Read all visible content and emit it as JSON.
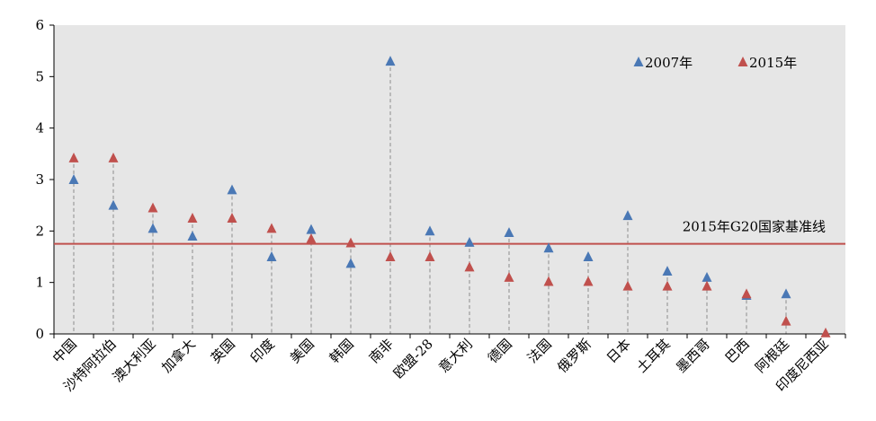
{
  "chart_data": {
    "type": "scatter",
    "title": "",
    "xlabel": "",
    "ylabel": "",
    "ylim": [
      0,
      6
    ],
    "yticks": [
      0,
      1,
      2,
      3,
      4,
      5,
      6
    ],
    "grid": false,
    "legend_position": "top-right",
    "categories": [
      "中国",
      "沙特阿拉伯",
      "澳大利亚",
      "加拿大",
      "英国",
      "印度",
      "美国",
      "韩国",
      "南非",
      "欧盟-28",
      "意大利",
      "德国",
      "法国",
      "俄罗斯",
      "日本",
      "土耳其",
      "墨西哥",
      "巴西",
      "阿根廷",
      "印度尼西亚"
    ],
    "series": [
      {
        "name": "2007年",
        "color": "#4a78b5",
        "marker": "triangle",
        "values": [
          3.0,
          2.5,
          2.05,
          1.9,
          2.8,
          1.5,
          2.03,
          1.37,
          5.3,
          2.0,
          1.78,
          1.97,
          1.67,
          1.5,
          2.3,
          1.22,
          1.1,
          0.75,
          0.78,
          null
        ]
      },
      {
        "name": "2015年",
        "color": "#c0504d",
        "marker": "triangle",
        "values": [
          3.42,
          3.42,
          2.45,
          2.25,
          2.25,
          2.05,
          1.85,
          1.77,
          1.5,
          1.5,
          1.3,
          1.1,
          1.02,
          1.02,
          0.93,
          0.93,
          0.93,
          0.78,
          0.25,
          0.02
        ]
      }
    ],
    "reference_line": {
      "value": 1.75,
      "label": "2015年G20国家基准线",
      "color": "#c0504d"
    },
    "plot_background": "#e6e6e6",
    "drop_line_color": "#8c8c8c"
  }
}
